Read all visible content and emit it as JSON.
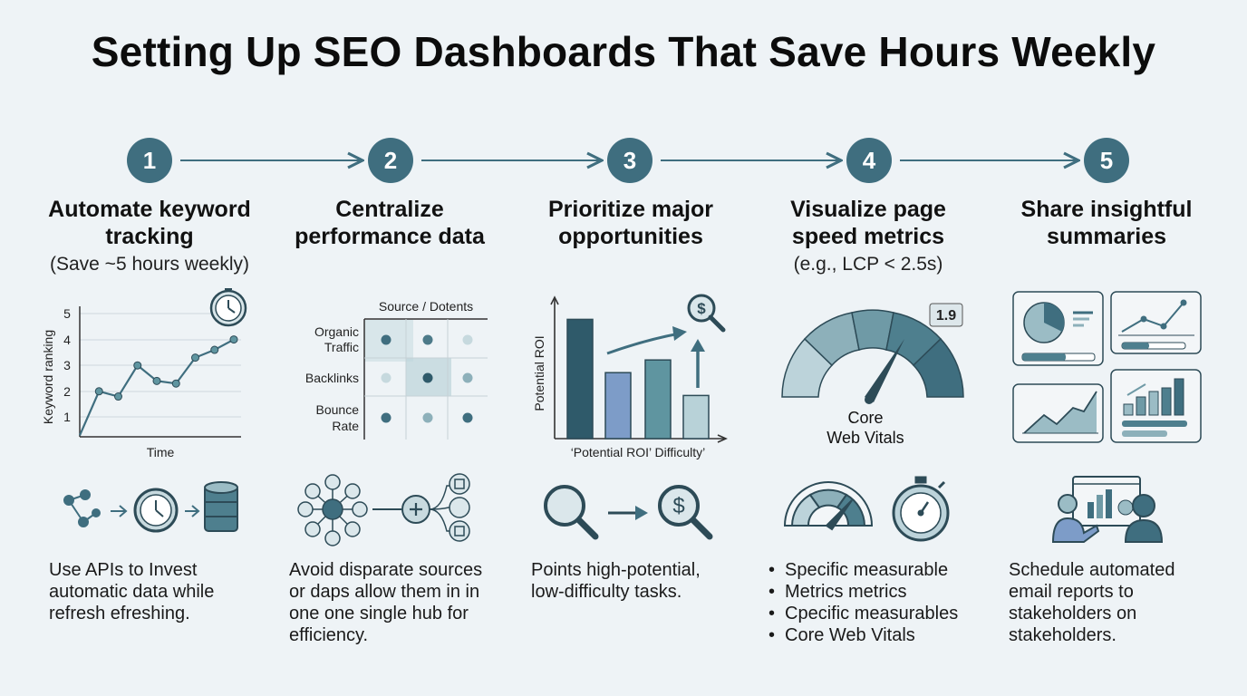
{
  "title": "Setting Up SEO Dashboards That Save Hours Weekly",
  "steps": [
    {
      "number": "1",
      "title_l1": "Automate keyword",
      "title_l2": "tracking",
      "subtitle": "(Save ~5 hours weekly)",
      "desc": [
        "Use APIs to Invest",
        "automatic data while",
        "refresh efreshing."
      ]
    },
    {
      "number": "2",
      "title_l1": "Centralize",
      "title_l2": "performance data",
      "subtitle": "",
      "desc": [
        "Avoid disparate sources",
        "or daps allow them in in",
        "one one single hub for",
        "efficiency."
      ]
    },
    {
      "number": "3",
      "title_l1": "Prioritize major",
      "title_l2": "opportunities",
      "subtitle": "",
      "desc": [
        "Points high-potential,",
        "low-difficulty tasks."
      ]
    },
    {
      "number": "4",
      "title_l1": "Visualize page",
      "title_l2": "speed metrics",
      "subtitle": "(e.g., LCP < 2.5s)",
      "desc": [
        "Specific measurable",
        "Metrics metrics",
        "Cpecific measurables",
        "Core Web Vitals"
      ]
    },
    {
      "number": "5",
      "title_l1": "Share insightful",
      "title_l2": "summaries",
      "subtitle": "",
      "desc": [
        "Schedule automated",
        "email reports to",
        "stakeholders on",
        "stakeholders."
      ]
    }
  ],
  "chart_data": [
    {
      "type": "line",
      "xlabel": "Time",
      "ylabel": "Keyword ranking",
      "ylim": [
        0,
        5
      ],
      "y_ticks": [
        "5",
        "4",
        "3",
        "2",
        "1"
      ],
      "series": [
        {
          "values": [
            0.3,
            2.0,
            1.8,
            3.0,
            2.4,
            2.3,
            3.3,
            3.6,
            4.0
          ]
        }
      ]
    },
    {
      "type": "table",
      "header": "Source / Dotents",
      "rows": [
        "Organic Traffic",
        "Backlinks",
        "Bounce Rate"
      ]
    },
    {
      "type": "bar",
      "ylabel": "Potential ROI",
      "xlabel": "‘Potential ROI’   Difficulty’",
      "values": [
        4.7,
        2.6,
        3.1,
        1.7
      ]
    }
  ],
  "gauge": {
    "label_l1": "Core",
    "label_l2": "Web Vitals",
    "badge": "1.9"
  },
  "colors": {
    "accent": "#3f6e7f",
    "dark": "#2f5a6a",
    "teal": "#5f95a0",
    "light": "#b8d2d8",
    "blue": "#7d9cc8"
  },
  "icons": {
    "clock": "clock-icon",
    "dollar": "dollar-search-icon",
    "database": "database-icon",
    "hub": "hub-icon",
    "stopwatch": "stopwatch-icon",
    "presenter": "presenter-icon"
  }
}
